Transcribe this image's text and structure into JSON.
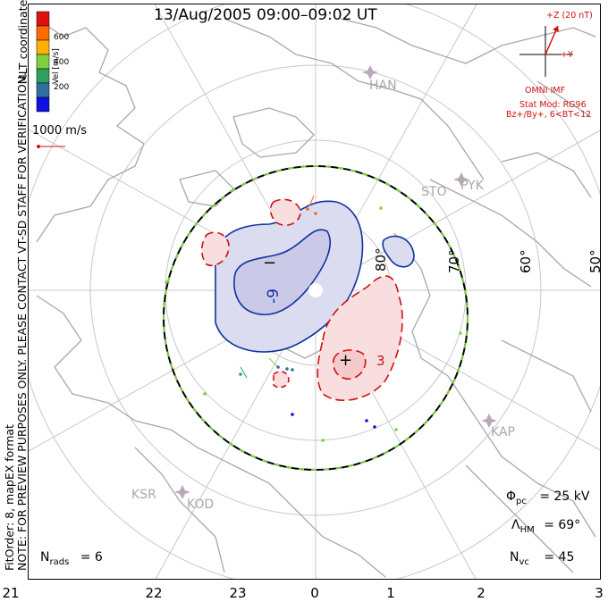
{
  "title": "13/Aug/2005 09:00–09:02 UT",
  "side_notes": {
    "coords": "MLT coordinates",
    "preview": "NOTE: FOR PREVIEW PURPOSES ONLY. PLEASE CONTACT VT-SD STAFF FOR VERIFICATION.",
    "fit": "FitOrder: 8, mapEX format"
  },
  "colorbar": {
    "label": "Vel [m/s]",
    "ticks": [
      "600",
      "400",
      "200"
    ],
    "colors": [
      "#e01010",
      "#ff6a00",
      "#ffb000",
      "#7fd040",
      "#30a060",
      "#3070a0",
      "#1010e0"
    ]
  },
  "velocity_ref": {
    "label": "1000 m/s"
  },
  "imf": {
    "z_label": "+Z (20 nT)",
    "y_label": "+Y",
    "source": "OMNI IMF",
    "model_line1": "Stat Mod: RG96",
    "model_line2": "Bz+/By+, 6<BT<12"
  },
  "latitude_labels": [
    "80°",
    "70°",
    "60°",
    "50°"
  ],
  "stations": [
    "HAN",
    "STO",
    "PYK",
    "KAP",
    "KSR",
    "KOD"
  ],
  "contour_labels": [
    "-9",
    "3"
  ],
  "symbols": {
    "min": "−",
    "max": "+"
  },
  "stats": {
    "phi_pc_symbol": "Φ",
    "phi_pc_sub": "pc",
    "phi_pc_value": "= 25 kV",
    "lambda_symbol": "Λ",
    "lambda_sub": "HM",
    "lambda_value": "= 69°",
    "nvc_symbol": "N",
    "nvc_sub": "vc",
    "nvc_value": "= 45",
    "nrads_symbol": "N",
    "nrads_sub": "rads",
    "nrads_value": "= 6"
  },
  "mlt_ticks": [
    "21",
    "22",
    "23",
    "0",
    "1",
    "2",
    "3"
  ],
  "colors": {
    "positive": "#d01010",
    "negative": "#1030a0",
    "land": "#a8a8a8",
    "grid": "#c8c8c8",
    "hmb": "#000000",
    "hmb_dash": "#7fd040"
  }
}
